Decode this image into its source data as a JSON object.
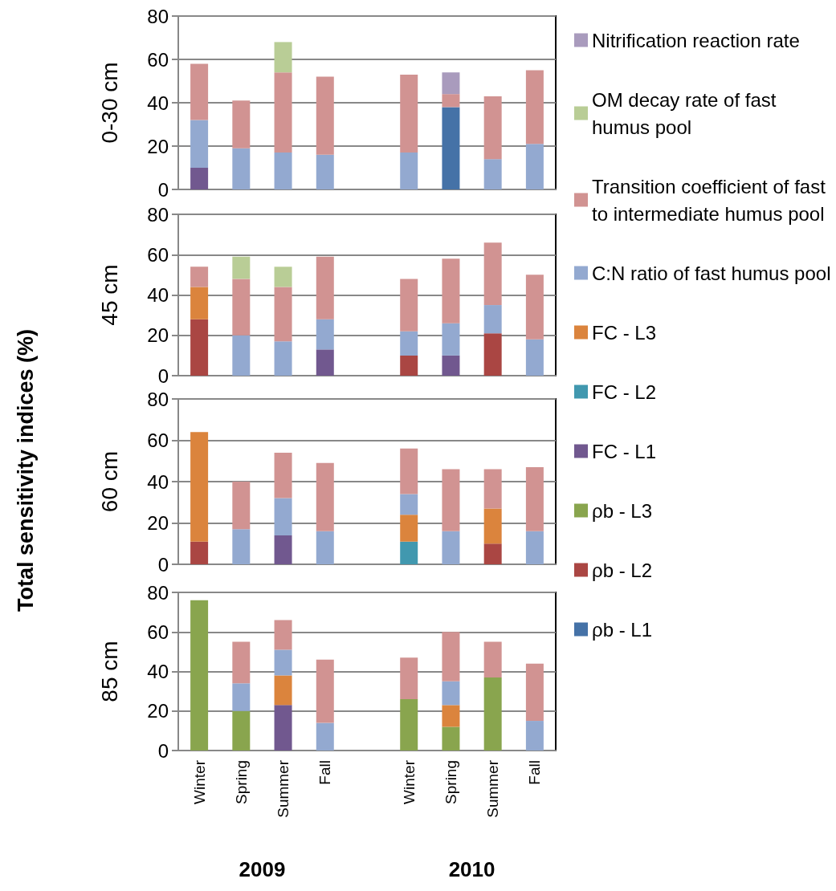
{
  "chart_data": [
    {
      "type": "bar",
      "stacked": true,
      "ylabel": "0-30 cm",
      "annotations": [
        "Total sensitivity indices (%)"
      ],
      "categories": [
        "Winter",
        "Spring",
        "Summer",
        "Fall",
        null,
        "Winter",
        "Spring",
        "Summer",
        "Fall"
      ],
      "ylim": [
        0,
        80
      ],
      "yticks": [
        0,
        20,
        40,
        60,
        80
      ],
      "grid": "y",
      "tick_labels": "y",
      "legend": "right",
      "series": [
        {
          "name": "ρb - L1",
          "color": "#4572a7",
          "values": [
            null,
            null,
            null,
            null,
            null,
            null,
            38,
            null,
            null
          ]
        },
        {
          "name": "ρb - L2",
          "color": "#aa4643",
          "values": [
            null,
            null,
            null,
            null,
            null,
            null,
            null,
            null,
            null
          ]
        },
        {
          "name": "ρb - L3",
          "color": "#89a54e",
          "values": [
            null,
            null,
            null,
            null,
            null,
            null,
            null,
            null,
            null
          ]
        },
        {
          "name": "FC - L1",
          "color": "#71588f",
          "values": [
            10,
            null,
            null,
            null,
            null,
            null,
            null,
            null,
            null
          ]
        },
        {
          "name": "FC - L2",
          "color": "#4198af",
          "values": [
            null,
            null,
            null,
            null,
            null,
            null,
            null,
            null,
            null
          ]
        },
        {
          "name": "FC - L3",
          "color": "#db843d",
          "values": [
            null,
            null,
            null,
            null,
            null,
            null,
            null,
            null,
            null
          ]
        },
        {
          "name": "C:N ratio of fast humus pool",
          "color": "#93a9d0",
          "values": [
            22,
            19,
            17,
            16,
            null,
            17,
            null,
            14,
            21
          ]
        },
        {
          "name": "Transition coefficient of fast to intermediate humus pool",
          "color": "#d19392",
          "values": [
            26,
            22,
            37,
            36,
            null,
            36,
            6,
            29,
            34
          ]
        },
        {
          "name": "OM decay rate of fast humus pool",
          "color": "#b9cd96",
          "values": [
            null,
            null,
            14,
            null,
            null,
            null,
            null,
            null,
            null
          ]
        },
        {
          "name": "Nitrification reaction rate",
          "color": "#a99bbd",
          "values": [
            null,
            null,
            null,
            null,
            null,
            null,
            10,
            null,
            null
          ]
        }
      ]
    },
    {
      "type": "bar",
      "stacked": true,
      "ylabel": "45 cm",
      "categories": [
        "Winter",
        "Spring",
        "Summer",
        "Fall",
        null,
        "Winter",
        "Spring",
        "Summer",
        "Fall"
      ],
      "ylim": [
        0,
        80
      ],
      "yticks": [
        0,
        20,
        40,
        60,
        80
      ],
      "grid": "y",
      "tick_labels": "y",
      "series": [
        {
          "color": "#aa4643",
          "values": [
            28,
            null,
            null,
            null,
            null,
            10,
            null,
            21,
            null
          ]
        },
        {
          "color": "#71588f",
          "values": [
            null,
            null,
            null,
            13,
            null,
            null,
            10,
            null,
            null
          ]
        },
        {
          "color": "#db843d",
          "values": [
            16,
            null,
            null,
            null,
            null,
            null,
            null,
            null,
            null
          ]
        },
        {
          "color": "#93a9d0",
          "values": [
            null,
            20,
            17,
            15,
            null,
            12,
            16,
            14,
            18
          ]
        },
        {
          "color": "#d19392",
          "values": [
            10,
            28,
            27,
            31,
            null,
            26,
            32,
            31,
            32
          ]
        },
        {
          "color": "#b9cd96",
          "values": [
            null,
            11,
            10,
            null,
            null,
            null,
            null,
            null,
            null
          ]
        }
      ]
    },
    {
      "type": "bar",
      "stacked": true,
      "ylabel": "60 cm",
      "categories": [
        "Winter",
        "Spring",
        "Summer",
        "Fall",
        null,
        "Winter",
        "Spring",
        "Summer",
        "Fall"
      ],
      "ylim": [
        0,
        80
      ],
      "yticks": [
        0,
        20,
        40,
        60,
        80
      ],
      "grid": "y",
      "tick_labels": "y",
      "series": [
        {
          "color": "#aa4643",
          "values": [
            11,
            null,
            null,
            null,
            null,
            null,
            null,
            10,
            null
          ]
        },
        {
          "color": "#71588f",
          "values": [
            null,
            null,
            14,
            null,
            null,
            null,
            null,
            null,
            null
          ]
        },
        {
          "color": "#4198af",
          "values": [
            null,
            null,
            null,
            null,
            null,
            11,
            null,
            null,
            null
          ]
        },
        {
          "color": "#db843d",
          "values": [
            53,
            null,
            null,
            null,
            null,
            13,
            null,
            17,
            null
          ]
        },
        {
          "color": "#93a9d0",
          "values": [
            null,
            17,
            18,
            16,
            null,
            10,
            16,
            null,
            16
          ]
        },
        {
          "color": "#d19392",
          "values": [
            null,
            23,
            22,
            33,
            null,
            22,
            30,
            19,
            31
          ]
        }
      ]
    },
    {
      "type": "bar",
      "stacked": true,
      "ylabel": "85 cm",
      "annotations": [
        "2009",
        "2010"
      ],
      "categories": [
        "Winter",
        "Spring",
        "Summer",
        "Fall",
        null,
        "Winter",
        "Spring",
        "Summer",
        "Fall"
      ],
      "ylim": [
        0,
        80
      ],
      "yticks": [
        0,
        20,
        40,
        60,
        80
      ],
      "grid": "y",
      "series": [
        {
          "color": "#89a54e",
          "values": [
            76,
            20,
            null,
            null,
            null,
            26,
            12,
            37,
            null
          ]
        },
        {
          "color": "#71588f",
          "values": [
            null,
            null,
            23,
            null,
            null,
            null,
            null,
            null,
            null
          ]
        },
        {
          "color": "#db843d",
          "values": [
            null,
            null,
            15,
            null,
            null,
            null,
            11,
            null,
            null
          ]
        },
        {
          "color": "#93a9d0",
          "values": [
            null,
            14,
            13,
            14,
            null,
            null,
            12,
            null,
            15
          ]
        },
        {
          "color": "#d19392",
          "values": [
            null,
            21,
            15,
            32,
            null,
            21,
            25,
            18,
            29
          ]
        }
      ]
    }
  ]
}
